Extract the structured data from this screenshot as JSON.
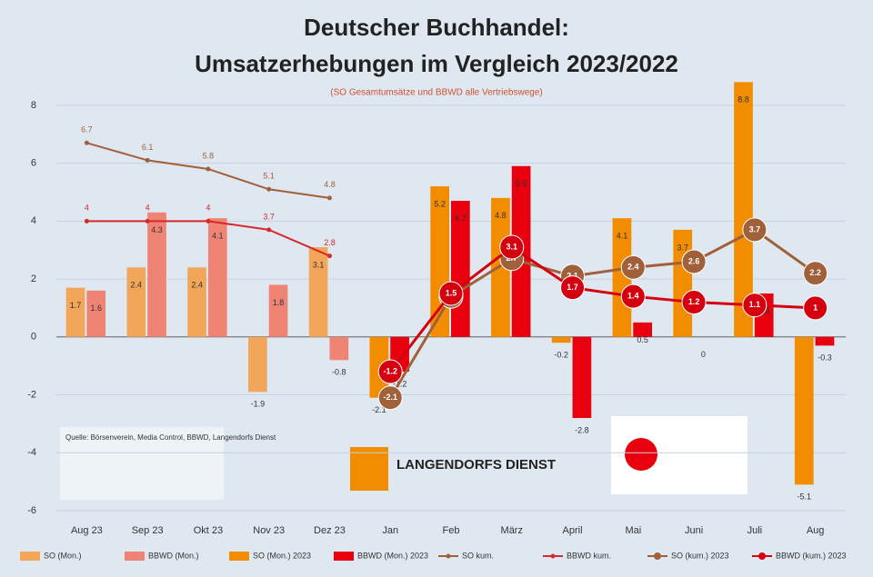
{
  "chart_data": {
    "type": "bar",
    "title": "Deutscher Buchhandel:",
    "subtitle": "Umsatzerhebungen im Vergleich 2023/2022",
    "note": "(SO Gesamtumsätze und BBWD alle Vertriebswege)",
    "source": "Quelle: Börsenverein, Media Control, BBWD, Langendorfs Dienst",
    "logo_text": "LANGENDORFS DIENST",
    "categories": [
      "Aug 23",
      "Sep 23",
      "Okt 23",
      "Nov 23",
      "Dez 23",
      "Jan",
      "Feb",
      "März",
      "April",
      "Mai",
      "Juni",
      "Juli",
      "Aug"
    ],
    "ylim": [
      -6,
      9
    ],
    "yticks": [
      -6,
      -4,
      -2,
      0,
      2,
      4,
      6,
      8
    ],
    "grid": true,
    "series": [
      {
        "name": "SO (Mon.)",
        "type": "bar",
        "color": "#f2a65a",
        "values": [
          1.7,
          2.4,
          2.4,
          -1.9,
          3.1,
          null,
          null,
          null,
          null,
          null,
          null,
          null,
          null
        ]
      },
      {
        "name": "BBWD (Mon.)",
        "type": "bar",
        "color": "#f08474",
        "values": [
          1.6,
          4.3,
          4.1,
          1.8,
          -0.8,
          null,
          null,
          null,
          null,
          null,
          null,
          null,
          null
        ]
      },
      {
        "name": "SO (Mon.) 2023",
        "type": "bar",
        "color": "#f28c00",
        "values": [
          null,
          null,
          null,
          null,
          null,
          -2.1,
          5.2,
          4.8,
          -0.2,
          4.1,
          3.7,
          8.8,
          -5.1
        ]
      },
      {
        "name": "BBWD (Mon.) 2023",
        "type": "bar",
        "color": "#e8000e",
        "values": [
          null,
          null,
          null,
          null,
          null,
          -1.2,
          4.7,
          5.9,
          -2.8,
          0.5,
          0,
          1.5,
          -0.3
        ]
      },
      {
        "name": "SO kum.",
        "type": "line",
        "color": "#a0603a",
        "values": [
          6.7,
          6.1,
          5.8,
          5.1,
          4.8,
          null,
          null,
          null,
          null,
          null,
          null,
          null,
          null
        ]
      },
      {
        "name": "BBWD kum.",
        "type": "line",
        "color": "#d42a2a",
        "values": [
          4.0,
          4.0,
          4.0,
          3.7,
          2.8,
          null,
          null,
          null,
          null,
          null,
          null,
          null,
          null
        ]
      },
      {
        "name": "SO (kum.) 2023",
        "type": "circle-line",
        "color": "#a0603a",
        "values": [
          null,
          null,
          null,
          null,
          null,
          -2.1,
          1.4,
          2.7,
          2.1,
          2.4,
          2.6,
          3.7,
          2.2
        ]
      },
      {
        "name": "BBWD (kum.) 2023",
        "type": "circle-line",
        "color": "#d40010",
        "values": [
          null,
          null,
          null,
          null,
          null,
          -1.2,
          1.5,
          3.1,
          1.7,
          1.4,
          1.2,
          1.1,
          1.0
        ]
      }
    ]
  }
}
